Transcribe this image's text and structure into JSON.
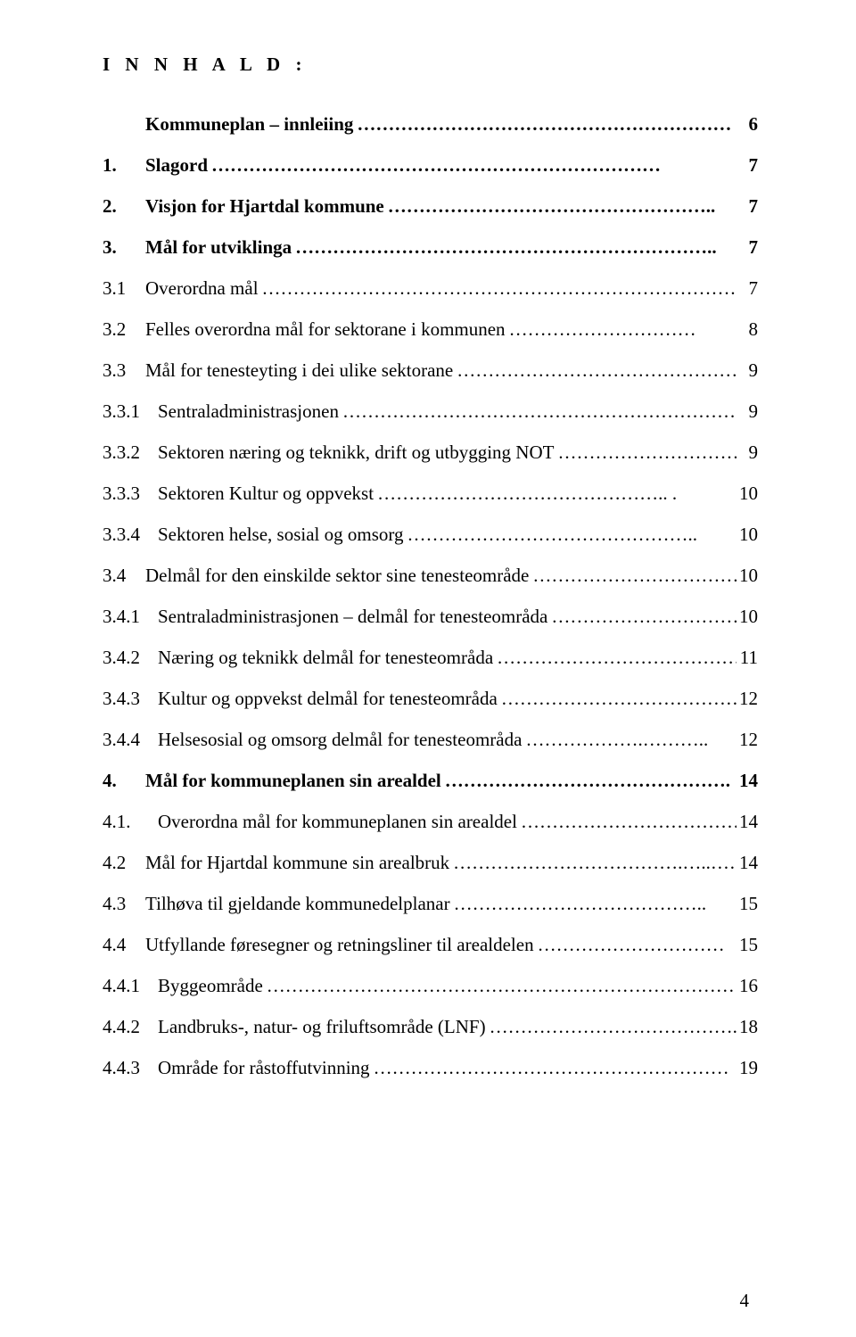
{
  "header": "I N N H A L D :",
  "page_number": "4",
  "toc": [
    {
      "num": "",
      "label": "Kommuneplan – innleiing",
      "dots": "……………………………………………………",
      "page": "6",
      "bold": true,
      "wide": false
    },
    {
      "num": "1.",
      "label": "Slagord",
      "dots": "………………………………………………………………",
      "page": "7",
      "bold": true,
      "wide": false
    },
    {
      "num": "2.",
      "label": "Visjon for Hjartdal kommune",
      "dots": "……………………………………………..",
      "page": "7",
      "bold": true,
      "wide": false
    },
    {
      "num": "3.",
      "label": "Mål for utviklinga",
      "dots": "…………………………………………………………..",
      "page": "7",
      "bold": true,
      "wide": false
    },
    {
      "num": "3.1",
      "label": "Overordna mål",
      "dots": "…………………………………………………………………….",
      "page": "7",
      "bold": false,
      "wide": false
    },
    {
      "num": "3.2",
      "label": "Felles overordna mål for sektorane i kommunen",
      "dots": "…………………………",
      "page": "8",
      "bold": false,
      "wide": false
    },
    {
      "num": "3.3",
      "label": "Mål for tenesteyting i dei ulike sektorane",
      "dots": "………………………………………",
      "page": "9",
      "bold": false,
      "wide": false
    },
    {
      "num": "3.3.1",
      "label": "Sentraladministrasjonen",
      "dots": "…………………………………………………………….",
      "page": "9",
      "bold": false,
      "wide": true
    },
    {
      "num": "3.3.2",
      "label": "Sektoren næring og teknikk, drift og utbygging  NOT",
      "dots": "…………………………",
      "page": "9",
      "bold": false,
      "wide": true
    },
    {
      "num": "3.3.3",
      "label": "Sektoren Kultur og oppvekst",
      "dots": "……………………………………….. .",
      "page": "10",
      "bold": false,
      "wide": true
    },
    {
      "num": "3.3.4",
      "label": "Sektoren helse, sosial og omsorg",
      "dots": "………………………………………..",
      "page": "10",
      "bold": false,
      "wide": true
    },
    {
      "num": "3.4",
      "label": "Delmål for den einskilde sektor sine tenesteområde",
      "dots": "……………………………..",
      "page": "10",
      "bold": false,
      "wide": false
    },
    {
      "num": "3.4.1",
      "label": "Sentraladministrasjonen – delmål for tenesteområda",
      "dots": "…………………………….",
      "page": "10",
      "bold": false,
      "wide": true
    },
    {
      "num": "3.4.2",
      "label": "Næring og teknikk delmål for tenesteområda",
      "dots": "……………………………………..",
      "page": "11",
      "bold": false,
      "wide": true
    },
    {
      "num": "3.4.3",
      "label": "Kultur og oppvekst delmål for tenesteområda",
      "dots": "…………………………………….",
      "page": "12",
      "bold": false,
      "wide": true
    },
    {
      "num": "3.4.4",
      "label": "Helsesosial og omsorg delmål for tenesteområda",
      "dots": "……………….………..",
      "page": "12",
      "bold": false,
      "wide": true
    },
    {
      "num": "4.",
      "label": "Mål for kommuneplanen sin arealdel",
      "dots": "……………………………………….",
      "page": "14",
      "bold": true,
      "wide": false
    },
    {
      "num": "4.1.",
      "label": "Overordna mål for kommuneplanen sin arealdel",
      "dots": "………………………………...",
      "page": "14",
      "bold": false,
      "wide": true
    },
    {
      "num": "4.2",
      "label": "Mål for Hjartdal kommune sin arealbruk",
      "dots": "……………………………….…..……",
      "page": "14",
      "bold": false,
      "wide": false
    },
    {
      "num": "4.3",
      "label": "Tilhøva til gjeldande kommunedelplanar",
      "dots": "…………………………………..",
      "page": "15",
      "bold": false,
      "wide": false
    },
    {
      "num": "4.4",
      "label": "Utfyllande føresegner og retningsliner til arealdelen",
      "dots": "…………………………",
      "page": "15",
      "bold": false,
      "wide": false
    },
    {
      "num": "4.4.1",
      "label": "Byggeområde",
      "dots": "…………………………………………………………………….",
      "page": "16",
      "bold": false,
      "wide": true
    },
    {
      "num": "4.4.2",
      "label": "Landbruks-, natur- og friluftsområde (LNF)",
      "dots": "………………………………….",
      "page": "18",
      "bold": false,
      "wide": true
    },
    {
      "num": "4.4.3",
      "label": "Område for råstoffutvinning",
      "dots": "…………………………………………………",
      "page": "19",
      "bold": false,
      "wide": true
    }
  ]
}
